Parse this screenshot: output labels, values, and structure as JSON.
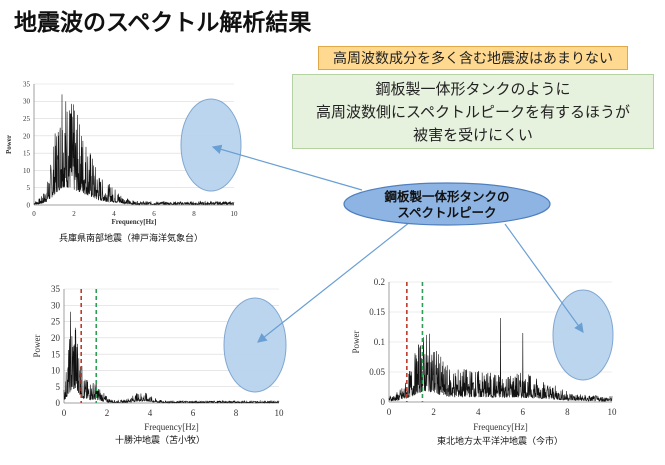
{
  "title": "地震波のスペクトル解析結果",
  "note_top": "高周波数成分を多く含む地震波はあまりない",
  "note_main": [
    "鋼板製一体形タンクのように",
    "高周波数側にスペクトルピークを有するほうが",
    "被害を受けにくい"
  ],
  "callout": [
    "鋼板製一体形タンクの",
    "スペクトルピーク"
  ],
  "colors": {
    "callout_fill": "#8eb4e3",
    "highlight_fill": "#b9d3ee",
    "arrow": "#6a9fd4",
    "red_dashed": "#c0392b",
    "green_dashed": "#2e9e57"
  },
  "chart_data": [
    {
      "type": "line",
      "caption": "兵庫県南部地震（神戸海洋気象台）",
      "xlabel": "Frequency[Hz]",
      "ylabel": "Power",
      "xlim": [
        0,
        10
      ],
      "ylim": [
        0,
        35
      ],
      "xticks": [
        0,
        2,
        4,
        6,
        8,
        10
      ],
      "yticks": [
        0,
        5,
        10,
        15,
        20,
        25,
        30,
        35
      ],
      "peak": {
        "x": 1.4,
        "y": 32
      }
    },
    {
      "type": "line",
      "caption": "十勝沖地震（苫小牧）",
      "xlabel": "Frequency[Hz]",
      "ylabel": "Power",
      "xlim": [
        0,
        10
      ],
      "ylim": [
        0,
        35
      ],
      "xticks": [
        0,
        2,
        4,
        6,
        8,
        10
      ],
      "yticks": [
        0,
        5,
        10,
        15,
        20,
        25,
        30,
        35
      ],
      "vlines": [
        {
          "x": 0.8,
          "color": "red"
        },
        {
          "x": 1.5,
          "color": "green"
        }
      ]
    },
    {
      "type": "line",
      "caption": "東北地方太平洋沖地震（今市）",
      "xlabel": "Frequency[Hz]",
      "ylabel": "Power",
      "xlim": [
        0,
        10
      ],
      "ylim": [
        0,
        0.2
      ],
      "xticks": [
        0,
        2,
        4,
        6,
        8,
        10
      ],
      "yticks": [
        0,
        0.05,
        0.1,
        0.15,
        0.2
      ],
      "vlines": [
        {
          "x": 0.8,
          "color": "red"
        },
        {
          "x": 1.5,
          "color": "green"
        }
      ]
    }
  ]
}
